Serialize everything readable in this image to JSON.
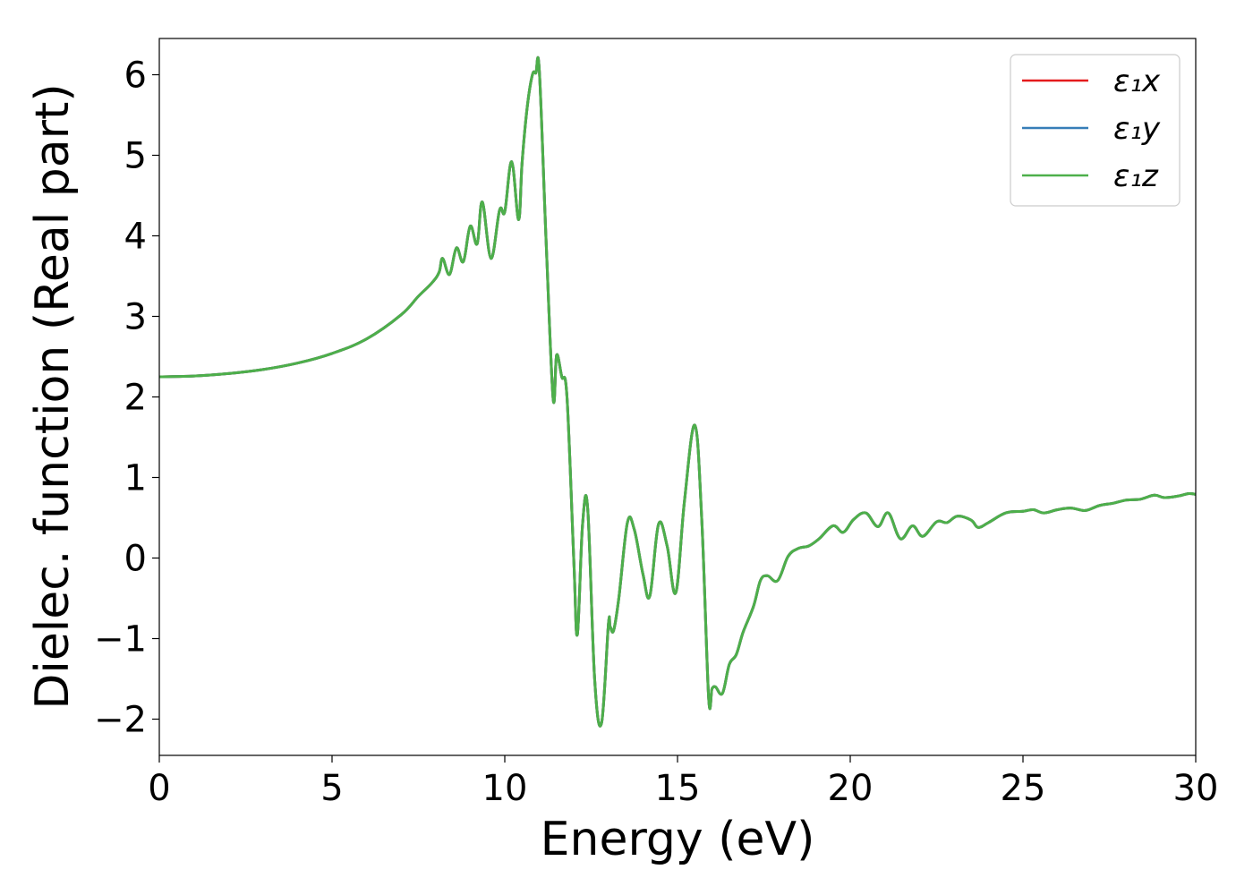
{
  "chart_data": {
    "type": "line",
    "title": "",
    "xlabel": "Energy (eV)",
    "ylabel": "Dielec. function (Real part)",
    "xlim": [
      0,
      30
    ],
    "ylim": [
      -2.45,
      6.45
    ],
    "xticks": [
      0,
      5,
      10,
      15,
      20,
      25,
      30
    ],
    "xtick_labels": [
      "0",
      "5",
      "10",
      "15",
      "20",
      "25",
      "30"
    ],
    "yticks": [
      -2,
      -1,
      0,
      1,
      2,
      3,
      4,
      5,
      6
    ],
    "ytick_labels": [
      "−2",
      "−1",
      "0",
      "1",
      "2",
      "3",
      "4",
      "5",
      "6"
    ],
    "grid": false,
    "legend_position": "top-right",
    "x": [
      0,
      1,
      2,
      3,
      4,
      5,
      6,
      7,
      7.5,
      7.9,
      8.1,
      8.2,
      8.4,
      8.6,
      8.8,
      9.0,
      9.2,
      9.35,
      9.6,
      9.85,
      10.0,
      10.2,
      10.4,
      10.5,
      10.65,
      10.8,
      10.9,
      11.0,
      11.2,
      11.4,
      11.5,
      11.65,
      11.8,
      12.0,
      12.1,
      12.25,
      12.4,
      12.6,
      12.8,
      13.0,
      13.05,
      13.15,
      13.3,
      13.55,
      13.75,
      14.0,
      14.2,
      14.45,
      14.7,
      14.95,
      15.2,
      15.5,
      15.7,
      15.9,
      16.0,
      16.1,
      16.3,
      16.5,
      16.7,
      16.9,
      17.2,
      17.4,
      17.6,
      17.9,
      18.2,
      18.5,
      18.8,
      19.1,
      19.5,
      19.8,
      20.1,
      20.45,
      20.8,
      21.1,
      21.45,
      21.8,
      22.1,
      22.5,
      22.8,
      23.1,
      23.5,
      23.7,
      24.0,
      24.5,
      25.0,
      25.3,
      25.6,
      26.0,
      26.4,
      26.8,
      27.2,
      27.6,
      28.0,
      28.4,
      28.8,
      29.1,
      29.5,
      29.8,
      30.0
    ],
    "series": [
      {
        "name": "ε₁x",
        "color": "#e41a1c",
        "values": "same as ε₁z"
      },
      {
        "name": "ε₁y",
        "color": "#377eb8",
        "values": "same as ε₁z"
      },
      {
        "name": "ε₁z",
        "color": "#4daf4a",
        "values": [
          2.25,
          2.26,
          2.29,
          2.34,
          2.42,
          2.54,
          2.72,
          3.02,
          3.25,
          3.42,
          3.55,
          3.72,
          3.52,
          3.85,
          3.68,
          4.12,
          3.9,
          4.42,
          3.72,
          4.32,
          4.3,
          4.92,
          4.2,
          4.9,
          5.6,
          6.0,
          6.02,
          6.05,
          3.9,
          1.98,
          2.52,
          2.25,
          2.0,
          -0.05,
          -0.95,
          0.4,
          0.62,
          -1.5,
          -2.05,
          -0.82,
          -0.85,
          -0.9,
          -0.5,
          0.44,
          0.35,
          -0.2,
          -0.47,
          0.42,
          0.15,
          -0.43,
          0.7,
          1.65,
          0.5,
          -1.72,
          -1.62,
          -1.6,
          -1.68,
          -1.32,
          -1.2,
          -0.92,
          -0.6,
          -0.28,
          -0.22,
          -0.28,
          0.02,
          0.12,
          0.15,
          0.24,
          0.4,
          0.32,
          0.48,
          0.56,
          0.39,
          0.56,
          0.24,
          0.4,
          0.27,
          0.45,
          0.44,
          0.52,
          0.47,
          0.38,
          0.44,
          0.56,
          0.58,
          0.6,
          0.56,
          0.6,
          0.62,
          0.59,
          0.65,
          0.68,
          0.72,
          0.73,
          0.78,
          0.75,
          0.77,
          0.8,
          0.79
        ]
      }
    ]
  }
}
